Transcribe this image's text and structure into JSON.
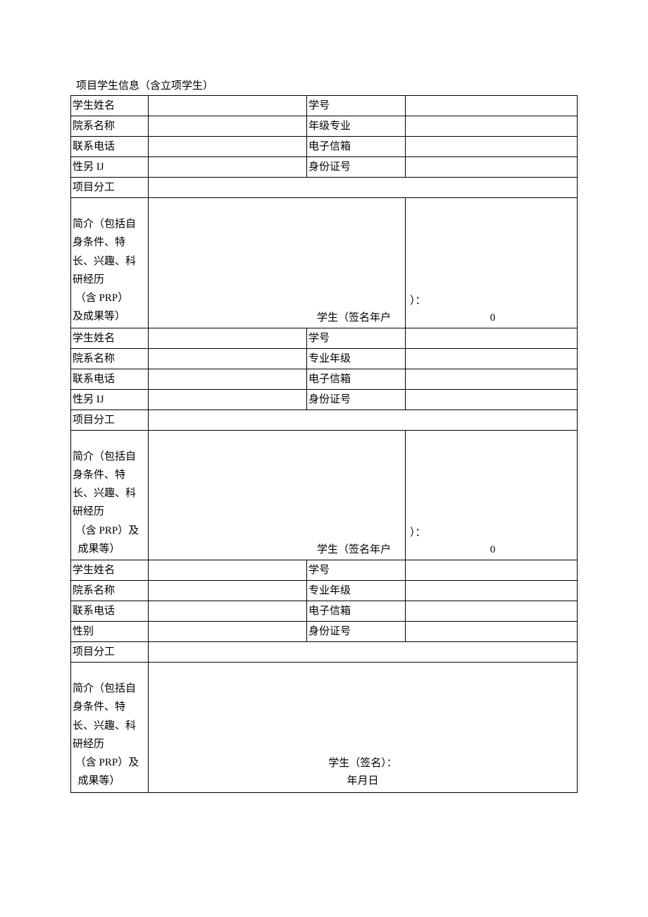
{
  "title": "项目学生信息（含立项学生）",
  "labels": {
    "student_name": "学生姓名",
    "student_id": "学号",
    "department": "院系名称",
    "grade_major": "年级专业",
    "major_grade": "专业年级",
    "phone": "联系电话",
    "email": "电子信箱",
    "gender_ij": "性另 IJ",
    "gender": "性别",
    "id_number": "身份证号",
    "project_role": "项目分工"
  },
  "intro1": {
    "l1": "简介（包括自",
    "l2": "身条件、特",
    "l3": "长、兴趣、科",
    "l4": "研经历",
    "l5": " （含 PRP）",
    "l6": "及成果等）"
  },
  "intro2": {
    "l1": "简介（包括自",
    "l2": "身条件、特",
    "l3": "长、兴趣、科",
    "l4": "研经历",
    "l5": " （含 PRP）及",
    "l6": "  成果等）"
  },
  "intro3": {
    "l1": "简介（包括自",
    "l2": "身条件、特",
    "l3": "长、兴趣、科",
    "l4": "研经历",
    "l5": " （含 PRP）及",
    "l6": "  成果等）"
  },
  "signature": {
    "sig_text": "学生（签名年户",
    "paren_colon": "）：",
    "zero": "0",
    "student_sign": "学生（签名）：",
    "date": "年月日"
  }
}
